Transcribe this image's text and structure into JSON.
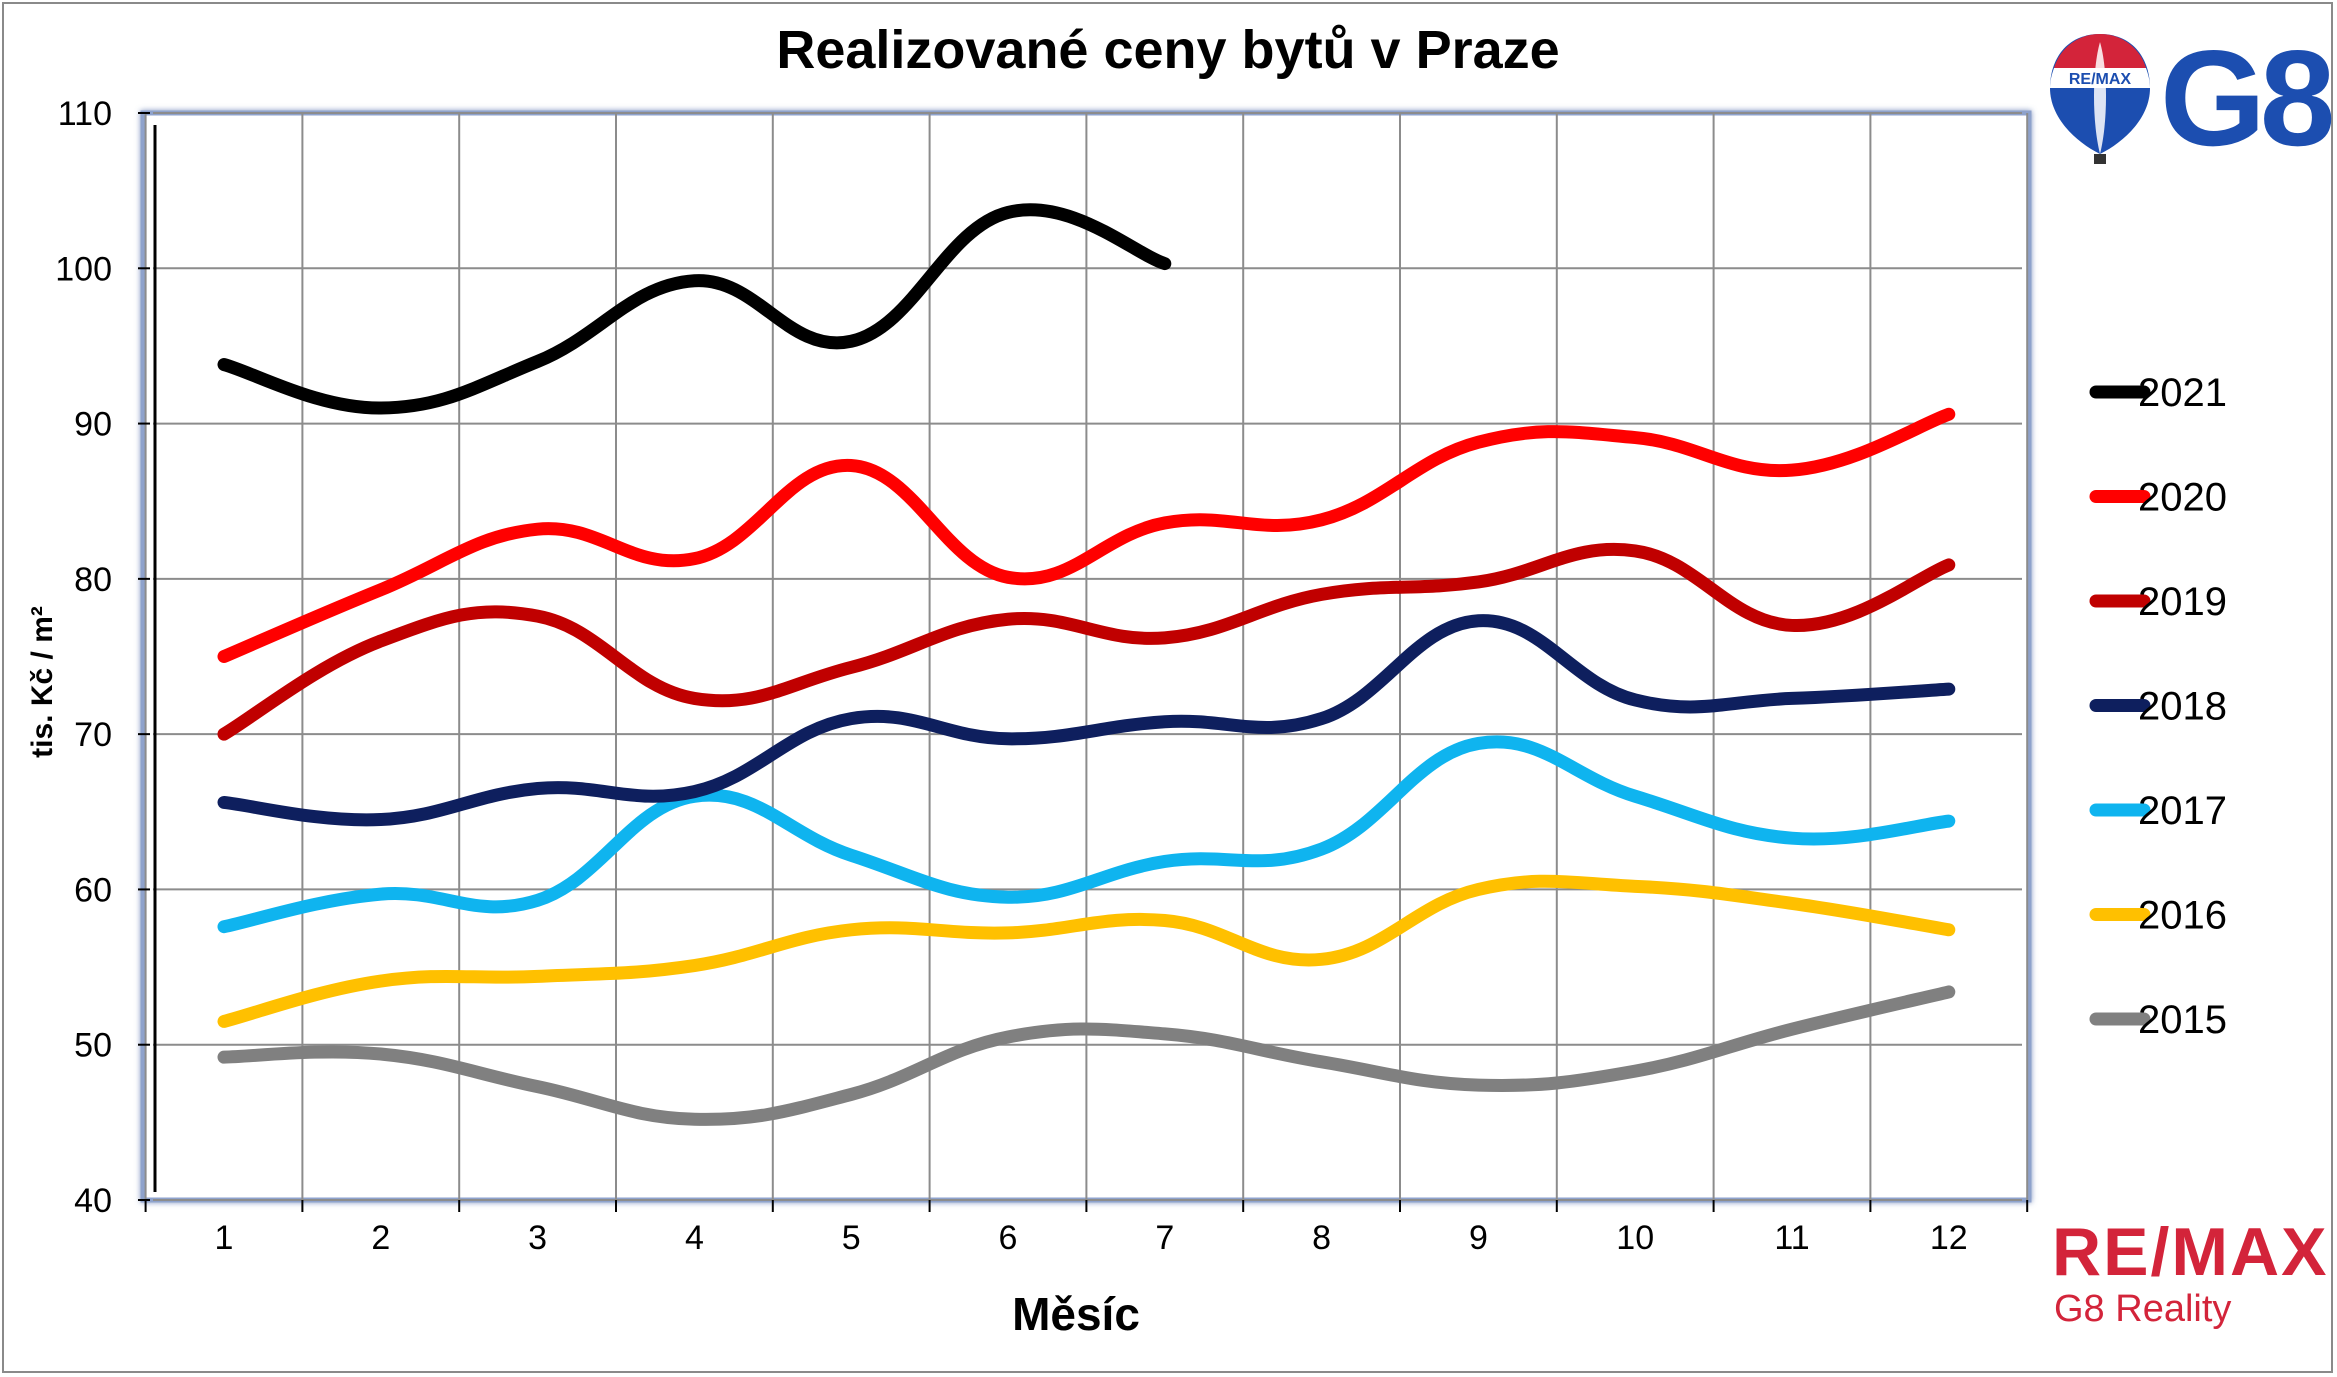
{
  "chart_data": {
    "type": "line",
    "title": "Realizované ceny bytů v Praze",
    "xlabel": "Měsíc",
    "ylabel": "tis. Kč / m²",
    "x": [
      1,
      2,
      3,
      4,
      5,
      6,
      7,
      8,
      9,
      10,
      11,
      12
    ],
    "ylim": [
      40,
      110
    ],
    "yticks": [
      40,
      50,
      60,
      70,
      80,
      90,
      100,
      110
    ],
    "grid": true,
    "legend_position": "right",
    "series": [
      {
        "name": "2021",
        "color": "#000000",
        "values": [
          93.8,
          91.0,
          94.0,
          99.2,
          95.3,
          103.6,
          100.3,
          null,
          null,
          null,
          null,
          null
        ]
      },
      {
        "name": "2020",
        "color": "#ff0000",
        "values": [
          75.0,
          79.3,
          83.2,
          81.3,
          87.3,
          80.1,
          83.6,
          83.8,
          88.8,
          89.1,
          87.0,
          90.6
        ]
      },
      {
        "name": "2019",
        "color": "#c00000",
        "values": [
          70.0,
          76.0,
          77.6,
          72.3,
          74.3,
          77.4,
          76.2,
          79.0,
          79.8,
          81.8,
          77.0,
          80.9
        ]
      },
      {
        "name": "2018",
        "color": "#0e1f5e",
        "values": [
          65.6,
          64.5,
          66.5,
          66.3,
          71.0,
          69.7,
          70.8,
          71.0,
          77.3,
          72.2,
          72.3,
          72.9
        ]
      },
      {
        "name": "2017",
        "color": "#0fb4ef",
        "values": [
          57.6,
          59.7,
          59.3,
          66.0,
          62.2,
          59.5,
          61.8,
          62.6,
          69.4,
          66.0,
          63.3,
          64.4
        ]
      },
      {
        "name": "2016",
        "color": "#ffc000",
        "values": [
          51.5,
          54.1,
          54.4,
          55.1,
          57.4,
          57.2,
          58.0,
          55.5,
          60.0,
          60.2,
          59.1,
          57.4
        ]
      },
      {
        "name": "2015",
        "color": "#808080",
        "values": [
          49.2,
          49.4,
          47.3,
          45.2,
          46.8,
          50.5,
          50.7,
          48.9,
          47.4,
          48.3,
          51.0,
          53.4
        ]
      }
    ]
  },
  "branding": {
    "top_logo_text": "G8",
    "balloon_text": "RE/MAX",
    "bottom_logo_name": "RE/MAX",
    "bottom_logo_sub": "G8 Reality"
  }
}
